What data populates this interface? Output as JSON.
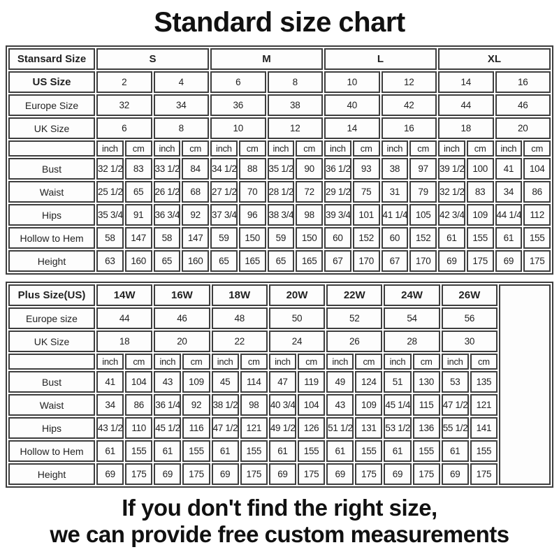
{
  "title": "Standard size chart",
  "footer": {
    "line1": "If you don't find the right size,",
    "line2": "we can provide free custom measurements"
  },
  "colors": {
    "border": "#3e3e3e",
    "text": "#1d1d1d",
    "background": "#ffffff"
  },
  "standard_table": {
    "corner_label": "Stansard Size",
    "group_colspan": 4,
    "trailing_empty_col": false,
    "groups": [
      "S",
      "M",
      "L",
      "XL"
    ],
    "size_rows": [
      {
        "label": "US Size",
        "bold": true,
        "values": [
          "2",
          "4",
          "6",
          "8",
          "10",
          "12",
          "14",
          "16"
        ]
      },
      {
        "label": "Europe Size",
        "bold": false,
        "values": [
          "32",
          "34",
          "36",
          "38",
          "40",
          "42",
          "44",
          "46"
        ]
      },
      {
        "label": "UK Size",
        "bold": false,
        "values": [
          "6",
          "8",
          "10",
          "12",
          "14",
          "16",
          "18",
          "20"
        ]
      }
    ],
    "units": [
      "inch",
      "cm",
      "inch",
      "cm",
      "inch",
      "cm",
      "inch",
      "cm",
      "inch",
      "cm",
      "inch",
      "cm",
      "inch",
      "cm",
      "inch",
      "cm"
    ],
    "measure_rows": [
      {
        "label": "Bust",
        "values": [
          "32 1/2",
          "83",
          "33 1/2",
          "84",
          "34 1/2",
          "88",
          "35 1/2",
          "90",
          "36 1/2",
          "93",
          "38",
          "97",
          "39 1/2",
          "100",
          "41",
          "104"
        ]
      },
      {
        "label": "Waist",
        "values": [
          "25 1/2",
          "65",
          "26 1/2",
          "68",
          "27 1/2",
          "70",
          "28 1/2",
          "72",
          "29 1/2",
          "75",
          "31",
          "79",
          "32 1/2",
          "83",
          "34",
          "86"
        ]
      },
      {
        "label": "Hips",
        "values": [
          "35 3/4",
          "91",
          "36 3/4",
          "92",
          "37 3/4",
          "96",
          "38 3/4",
          "98",
          "39 3/4",
          "101",
          "41 1/4",
          "105",
          "42 3/4",
          "109",
          "44 1/4",
          "112"
        ]
      },
      {
        "label": "Hollow to Hem",
        "values": [
          "58",
          "147",
          "58",
          "147",
          "59",
          "150",
          "59",
          "150",
          "60",
          "152",
          "60",
          "152",
          "61",
          "155",
          "61",
          "155"
        ]
      },
      {
        "label": "Height",
        "values": [
          "63",
          "160",
          "65",
          "160",
          "65",
          "165",
          "65",
          "165",
          "67",
          "170",
          "67",
          "170",
          "69",
          "175",
          "69",
          "175"
        ]
      }
    ]
  },
  "plus_table": {
    "corner_label": "Plus Size(US)",
    "group_colspan": 2,
    "trailing_empty_col": true,
    "groups": [
      "14W",
      "16W",
      "18W",
      "20W",
      "22W",
      "24W",
      "26W"
    ],
    "size_rows": [
      {
        "label": "Europe size",
        "bold": false,
        "values": [
          "44",
          "46",
          "48",
          "50",
          "52",
          "54",
          "56"
        ]
      },
      {
        "label": "UK Size",
        "bold": false,
        "values": [
          "18",
          "20",
          "22",
          "24",
          "26",
          "28",
          "30"
        ]
      }
    ],
    "units": [
      "inch",
      "cm",
      "inch",
      "cm",
      "inch",
      "cm",
      "inch",
      "cm",
      "inch",
      "cm",
      "inch",
      "cm",
      "inch",
      "cm"
    ],
    "measure_rows": [
      {
        "label": "Bust",
        "values": [
          "41",
          "104",
          "43",
          "109",
          "45",
          "114",
          "47",
          "119",
          "49",
          "124",
          "51",
          "130",
          "53",
          "135"
        ]
      },
      {
        "label": "Waist",
        "values": [
          "34",
          "86",
          "36 1/4",
          "92",
          "38 1/2",
          "98",
          "40 3/4",
          "104",
          "43",
          "109",
          "45 1/4",
          "115",
          "47 1/2",
          "121"
        ]
      },
      {
        "label": "Hips",
        "values": [
          "43 1/2",
          "110",
          "45 1/2",
          "116",
          "47 1/2",
          "121",
          "49 1/2",
          "126",
          "51 1/2",
          "131",
          "53 1/2",
          "136",
          "55 1/2",
          "141"
        ]
      },
      {
        "label": "Hollow to Hem",
        "values": [
          "61",
          "155",
          "61",
          "155",
          "61",
          "155",
          "61",
          "155",
          "61",
          "155",
          "61",
          "155",
          "61",
          "155"
        ]
      },
      {
        "label": "Height",
        "values": [
          "69",
          "175",
          "69",
          "175",
          "69",
          "175",
          "69",
          "175",
          "69",
          "175",
          "69",
          "175",
          "69",
          "175"
        ]
      }
    ]
  }
}
